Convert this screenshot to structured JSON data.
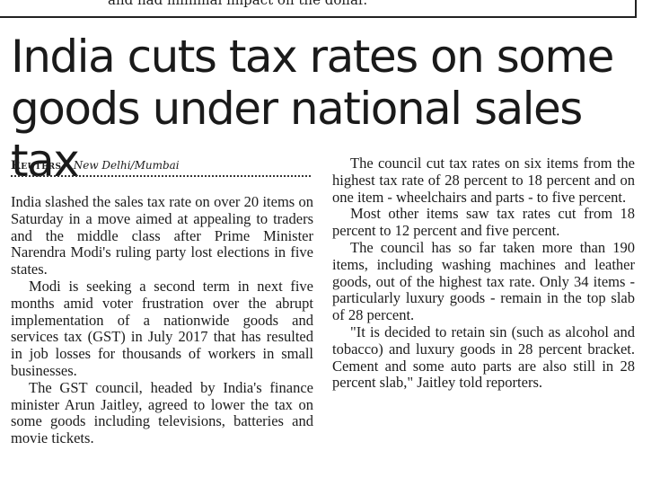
{
  "previous_article": {
    "tail_text": "and had minimal impact on the dollar."
  },
  "article": {
    "headline": "India cuts tax rates on some goods under national sales tax",
    "byline": {
      "agency": "Reuters,",
      "location": "New Delhi/Mumbai"
    },
    "left_column": [
      "India slashed the sales tax rate on over 20 items on Saturday in a move aimed at appealing to traders and the middle class after Prime Minister Narendra Modi's ruling party lost elections in five states.",
      "Modi is seeking a second term in next five months amid voter frustration over the abrupt implementation of a nationwide goods and services tax (GST) in July 2017 that has resulted in job losses for thousands of workers in small businesses.",
      "The GST council, headed by India's finance minister Arun Jaitley, agreed to lower the tax on some goods including televisions, batteries and movie tickets."
    ],
    "right_column": [
      "The council cut tax rates on six items from the highest tax rate of 28 percent to 18 percent and on one item - wheelchairs and parts - to five percent.",
      "Most other items saw tax rates cut from 18 percent to 12 percent and five percent.",
      "The council has so far taken more than 190 items, including washing machines and leather goods, out of the highest tax rate. Only 34 items - particularly luxury goods - remain in the top slab of 28 percent.",
      "\"It is decided to retain sin (such as alcohol and tobacco) and luxury goods in 28 percent bracket. Cement and some auto parts are also still in 28 percent slab,\" Jaitley told reporters."
    ]
  }
}
